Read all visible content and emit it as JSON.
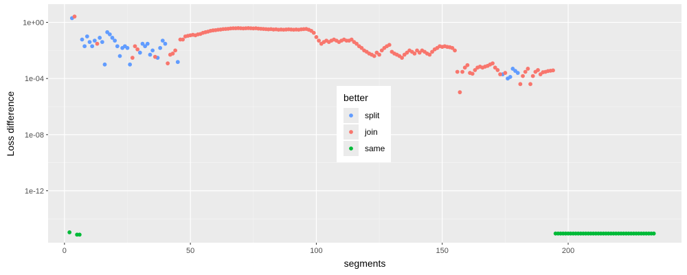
{
  "chart_data": {
    "type": "scatter",
    "title": "",
    "xlabel": "segments",
    "ylabel": "Loss difference",
    "x_ticks": [
      0,
      50,
      100,
      150,
      200
    ],
    "x_tick_labels": [
      "0",
      "50",
      "100",
      "150",
      "200"
    ],
    "y_scale": "log10",
    "y_ticks": [
      1,
      0.0001,
      1e-08,
      1e-12
    ],
    "y_tick_labels": [
      "1e+00",
      "1e-04",
      "1e-08",
      "1e-12"
    ],
    "xlim": [
      -6.5,
      245
    ],
    "ylim": [
      2e-16,
      20
    ],
    "grid": true,
    "legend": {
      "title": "better",
      "position": "center",
      "entries": [
        {
          "name": "split",
          "color": "#619CFF"
        },
        {
          "name": "join",
          "color": "#F8766D"
        },
        {
          "name": "same",
          "color": "#00BA38"
        }
      ]
    },
    "series": [
      {
        "name": "split",
        "color": "#619CFF",
        "points": [
          [
            3,
            2.0
          ],
          [
            7,
            0.06
          ],
          [
            8,
            0.02
          ],
          [
            9,
            0.1
          ],
          [
            10,
            0.04
          ],
          [
            11,
            0.02
          ],
          [
            12,
            0.05
          ],
          [
            14,
            0.08
          ],
          [
            15,
            0.04
          ],
          [
            16,
            0.001
          ],
          [
            17,
            0.2
          ],
          [
            18,
            0.14
          ],
          [
            19,
            0.08
          ],
          [
            20,
            0.05
          ],
          [
            21,
            0.02
          ],
          [
            22,
            0.004
          ],
          [
            23,
            0.015
          ],
          [
            24,
            0.02
          ],
          [
            25,
            0.015
          ],
          [
            26,
            0.001
          ],
          [
            30,
            0.007
          ],
          [
            31,
            0.03
          ],
          [
            32,
            0.02
          ],
          [
            33,
            0.03
          ],
          [
            34,
            0.005
          ],
          [
            35,
            0.01
          ],
          [
            37,
            0.003
          ],
          [
            38,
            0.015
          ],
          [
            39,
            0.05
          ],
          [
            40,
            0.03
          ],
          [
            45,
            0.0015
          ],
          [
            174,
            0.0002
          ],
          [
            176,
            0.0001
          ],
          [
            177,
            0.00013
          ],
          [
            178,
            0.0005
          ],
          [
            179,
            0.00035
          ],
          [
            180,
            0.00025
          ]
        ]
      },
      {
        "name": "join",
        "color": "#F8766D",
        "points": [
          [
            4,
            2.6
          ],
          [
            13,
            0.03
          ],
          [
            27,
            0.003
          ],
          [
            28,
            0.02
          ],
          [
            29,
            0.012
          ],
          [
            36,
            0.0035
          ],
          [
            41,
            0.0012
          ],
          [
            42,
            0.005
          ],
          [
            43,
            0.006
          ],
          [
            44,
            0.01
          ],
          [
            46,
            0.06
          ],
          [
            47,
            0.06
          ],
          [
            48,
            0.1
          ],
          [
            49,
            0.11
          ],
          [
            50,
            0.12
          ],
          [
            51,
            0.13
          ],
          [
            52,
            0.12
          ],
          [
            53,
            0.14
          ],
          [
            54,
            0.15
          ],
          [
            55,
            0.18
          ],
          [
            56,
            0.2
          ],
          [
            57,
            0.22
          ],
          [
            58,
            0.25
          ],
          [
            59,
            0.27
          ],
          [
            60,
            0.28
          ],
          [
            61,
            0.3
          ],
          [
            62,
            0.31
          ],
          [
            63,
            0.33
          ],
          [
            64,
            0.34
          ],
          [
            65,
            0.35
          ],
          [
            66,
            0.37
          ],
          [
            67,
            0.38
          ],
          [
            68,
            0.38
          ],
          [
            69,
            0.39
          ],
          [
            70,
            0.38
          ],
          [
            71,
            0.37
          ],
          [
            72,
            0.38
          ],
          [
            73,
            0.39
          ],
          [
            74,
            0.38
          ],
          [
            75,
            0.37
          ],
          [
            76,
            0.38
          ],
          [
            77,
            0.36
          ],
          [
            78,
            0.35
          ],
          [
            79,
            0.34
          ],
          [
            80,
            0.33
          ],
          [
            81,
            0.32
          ],
          [
            82,
            0.33
          ],
          [
            83,
            0.31
          ],
          [
            84,
            0.32
          ],
          [
            85,
            0.3
          ],
          [
            86,
            0.31
          ],
          [
            87,
            0.3
          ],
          [
            88,
            0.31
          ],
          [
            89,
            0.32
          ],
          [
            90,
            0.31
          ],
          [
            91,
            0.3
          ],
          [
            92,
            0.31
          ],
          [
            93,
            0.3
          ],
          [
            94,
            0.32
          ],
          [
            95,
            0.33
          ],
          [
            96,
            0.34
          ],
          [
            97,
            0.3
          ],
          [
            98,
            0.25
          ],
          [
            99,
            0.18
          ],
          [
            100,
            0.09
          ],
          [
            101,
            0.05
          ],
          [
            102,
            0.03
          ],
          [
            103,
            0.04
          ],
          [
            104,
            0.05
          ],
          [
            105,
            0.04
          ],
          [
            106,
            0.05
          ],
          [
            107,
            0.06
          ],
          [
            108,
            0.05
          ],
          [
            109,
            0.04
          ],
          [
            110,
            0.05
          ],
          [
            111,
            0.06
          ],
          [
            112,
            0.05
          ],
          [
            113,
            0.05
          ],
          [
            114,
            0.06
          ],
          [
            115,
            0.04
          ],
          [
            116,
            0.03
          ],
          [
            117,
            0.02
          ],
          [
            118,
            0.015
          ],
          [
            119,
            0.01
          ],
          [
            120,
            0.008
          ],
          [
            121,
            0.006
          ],
          [
            122,
            0.005
          ],
          [
            123,
            0.004
          ],
          [
            124,
            0.007
          ],
          [
            125,
            0.005
          ],
          [
            126,
            0.01
          ],
          [
            127,
            0.015
          ],
          [
            128,
            0.02
          ],
          [
            129,
            0.025
          ],
          [
            130,
            0.008
          ],
          [
            131,
            0.006
          ],
          [
            132,
            0.005
          ],
          [
            133,
            0.004
          ],
          [
            134,
            0.003
          ],
          [
            135,
            0.005
          ],
          [
            136,
            0.007
          ],
          [
            137,
            0.01
          ],
          [
            138,
            0.008
          ],
          [
            139,
            0.006
          ],
          [
            140,
            0.01
          ],
          [
            141,
            0.007
          ],
          [
            142,
            0.01
          ],
          [
            143,
            0.008
          ],
          [
            144,
            0.006
          ],
          [
            145,
            0.005
          ],
          [
            146,
            0.008
          ],
          [
            147,
            0.012
          ],
          [
            148,
            0.015
          ],
          [
            149,
            0.02
          ],
          [
            150,
            0.018
          ],
          [
            151,
            0.02
          ],
          [
            152,
            0.018
          ],
          [
            153,
            0.017
          ],
          [
            154,
            0.015
          ],
          [
            155,
            0.01
          ],
          [
            156,
            0.0003
          ],
          [
            157,
            1.05e-05
          ],
          [
            158,
            0.0003
          ],
          [
            159,
            0.0006
          ],
          [
            160,
            0.0009
          ],
          [
            161,
            0.00025
          ],
          [
            162,
            0.00022
          ],
          [
            163,
            0.0004
          ],
          [
            164,
            0.0006
          ],
          [
            165,
            0.0007
          ],
          [
            166,
            0.0006
          ],
          [
            167,
            0.0007
          ],
          [
            168,
            0.0008
          ],
          [
            169,
            0.001
          ],
          [
            170,
            0.0012
          ],
          [
            171,
            0.0006
          ],
          [
            172,
            0.0004
          ],
          [
            173,
            0.0002
          ],
          [
            175,
            0.00025
          ],
          [
            181,
            4e-05
          ],
          [
            182,
            0.00015
          ],
          [
            183,
            0.0003
          ],
          [
            184,
            0.0005
          ],
          [
            185,
            4e-05
          ],
          [
            186,
            0.00015
          ],
          [
            187,
            0.0003
          ],
          [
            188,
            0.0004
          ],
          [
            189,
            0.0002
          ],
          [
            190,
            0.00028
          ],
          [
            191,
            0.0003
          ],
          [
            192,
            0.00034
          ],
          [
            193,
            0.00036
          ],
          [
            194,
            0.00038
          ]
        ]
      },
      {
        "name": "same",
        "color": "#00BA38",
        "points": [
          [
            2,
            1.1e-15
          ],
          [
            5,
            7.5e-16
          ],
          [
            6,
            7.5e-16
          ],
          [
            195,
            9e-16
          ],
          [
            196,
            9e-16
          ],
          [
            197,
            9e-16
          ],
          [
            198,
            9e-16
          ],
          [
            199,
            9e-16
          ],
          [
            200,
            9e-16
          ],
          [
            201,
            9e-16
          ],
          [
            202,
            9e-16
          ],
          [
            203,
            9e-16
          ],
          [
            204,
            9e-16
          ],
          [
            205,
            9e-16
          ],
          [
            206,
            9e-16
          ],
          [
            207,
            9e-16
          ],
          [
            208,
            9e-16
          ],
          [
            209,
            9e-16
          ],
          [
            210,
            9e-16
          ],
          [
            211,
            9e-16
          ],
          [
            212,
            9e-16
          ],
          [
            213,
            9e-16
          ],
          [
            214,
            9e-16
          ],
          [
            215,
            9e-16
          ],
          [
            216,
            9e-16
          ],
          [
            217,
            9e-16
          ],
          [
            218,
            9e-16
          ],
          [
            219,
            9e-16
          ],
          [
            220,
            9e-16
          ],
          [
            221,
            9e-16
          ],
          [
            222,
            9e-16
          ],
          [
            223,
            9e-16
          ],
          [
            224,
            9e-16
          ],
          [
            225,
            9e-16
          ],
          [
            226,
            9e-16
          ],
          [
            227,
            9e-16
          ],
          [
            228,
            9e-16
          ],
          [
            229,
            9e-16
          ],
          [
            230,
            9e-16
          ],
          [
            231,
            9e-16
          ],
          [
            232,
            9e-16
          ],
          [
            233,
            9e-16
          ],
          [
            234,
            9e-16
          ]
        ]
      }
    ]
  }
}
